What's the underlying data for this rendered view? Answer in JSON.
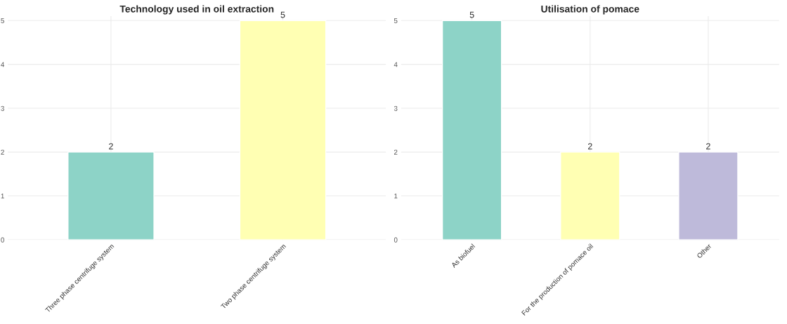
{
  "chart_data": [
    {
      "type": "bar",
      "title": "Technology used in oil extraction",
      "categories": [
        "Three phase centrifuge system",
        "Two phase centrifuge system"
      ],
      "values": [
        2,
        5
      ],
      "colors": [
        "#8dd3c7",
        "#ffffb3"
      ],
      "ylim": [
        0,
        5.1
      ],
      "yticks": [
        0,
        1,
        2,
        3,
        4,
        5
      ],
      "grid": true,
      "data_labels": true
    },
    {
      "type": "bar",
      "title": "Utilisation of pomace",
      "categories": [
        "As biofuel",
        "For the production of pomace oil",
        "Other"
      ],
      "values": [
        5,
        2,
        2
      ],
      "colors": [
        "#8dd3c7",
        "#ffffb3",
        "#bebada"
      ],
      "ylim": [
        0,
        5.1
      ],
      "yticks": [
        0,
        1,
        2,
        3,
        4,
        5
      ],
      "grid": true,
      "data_labels": true
    }
  ]
}
